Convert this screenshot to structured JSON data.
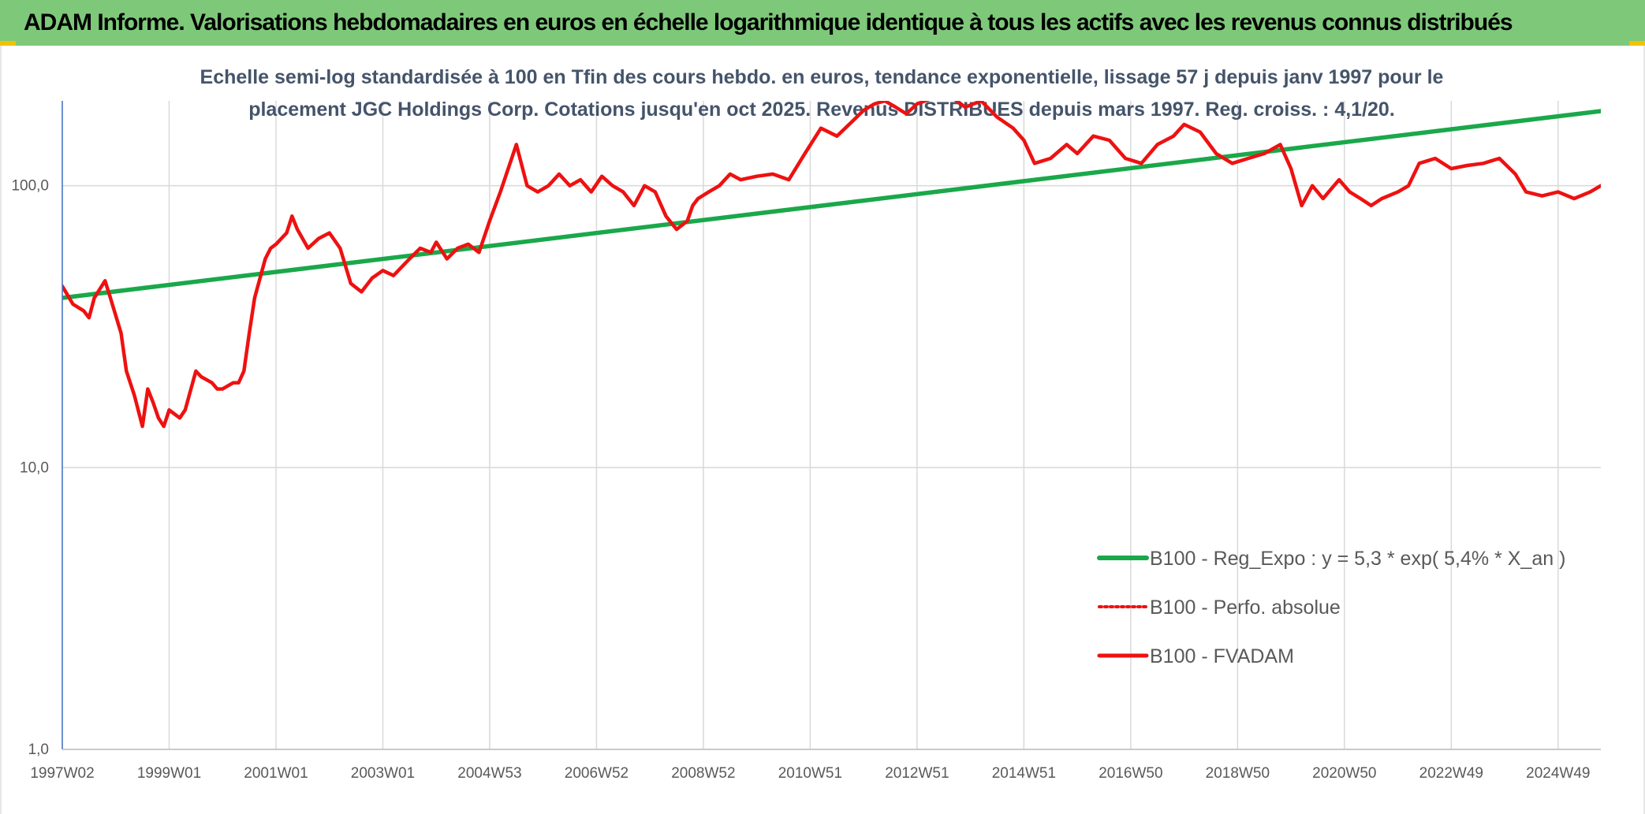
{
  "banner": {
    "title": "ADAM Informe. Valorisations hebdomadaires en euros en échelle logarithmique identique à tous les actifs avec les revenus connus distribués"
  },
  "colors": {
    "banner_bg": "#7ec87a",
    "trend": "#1aa84a",
    "fvadam": "#ee1111",
    "perfo": "#ee1111",
    "grid": "#d9d9d9",
    "text": "#595959",
    "subtitle": "#44546a"
  },
  "chart_data": {
    "type": "line",
    "title_lines": [
      "Echelle semi-log standardisée à 100 en Tfin des cours hebdo. en euros, tendance exponentielle, lissage 57 j depuis janv 1997 pour le",
      "placement JGC Holdings Corp. Cotations jusqu'en oct 2025. Revenus DISTRIBUES depuis mars 1997. Reg. croiss. : 4,1/20."
    ],
    "y_scale": "log",
    "ylim": [
      1,
      200
    ],
    "y_ticks": [
      {
        "value": 1,
        "label": "1,0"
      },
      {
        "value": 10,
        "label": "10,0"
      },
      {
        "value": 100,
        "label": "100,0"
      }
    ],
    "x_range": [
      1997.0,
      2025.8
    ],
    "x_ticks": [
      {
        "value": 1997.0,
        "label": "1997W02"
      },
      {
        "value": 1999.0,
        "label": "1999W01"
      },
      {
        "value": 2001.0,
        "label": "2001W01"
      },
      {
        "value": 2003.0,
        "label": "2003W01"
      },
      {
        "value": 2005.0,
        "label": "2004W53"
      },
      {
        "value": 2007.0,
        "label": "2006W52"
      },
      {
        "value": 2009.0,
        "label": "2008W52"
      },
      {
        "value": 2011.0,
        "label": "2010W51"
      },
      {
        "value": 2013.0,
        "label": "2012W51"
      },
      {
        "value": 2015.0,
        "label": "2014W51"
      },
      {
        "value": 2017.0,
        "label": "2016W50"
      },
      {
        "value": 2019.0,
        "label": "2018W50"
      },
      {
        "value": 2021.0,
        "label": "2020W50"
      },
      {
        "value": 2023.0,
        "label": "2022W49"
      },
      {
        "value": 2025.0,
        "label": "2024W49"
      }
    ],
    "legend_position": "bottom-right",
    "series": [
      {
        "name": "B100 - Reg_Expo : y = 5,3 * exp( 5,4% *  X_an )",
        "style": "solid-green",
        "x": [
          1997.0,
          2025.8
        ],
        "y": [
          40,
          184
        ]
      },
      {
        "name": "B100 - Perfo. absolue",
        "style": "dotted-red",
        "x": [],
        "y": []
      },
      {
        "name": "B100 - FVADAM",
        "style": "solid-red",
        "x": [
          1997.0,
          1997.2,
          1997.4,
          1997.5,
          1997.6,
          1997.8,
          1997.9,
          1998.1,
          1998.2,
          1998.35,
          1998.5,
          1998.6,
          1998.7,
          1998.8,
          1998.9,
          1999.0,
          1999.2,
          1999.3,
          1999.5,
          1999.6,
          1999.8,
          1999.9,
          2000.0,
          2000.2,
          2000.3,
          2000.4,
          2000.5,
          2000.6,
          2000.8,
          2000.9,
          2001.0,
          2001.2,
          2001.3,
          2001.4,
          2001.6,
          2001.8,
          2002.0,
          2002.2,
          2002.4,
          2002.6,
          2002.8,
          2003.0,
          2003.2,
          2003.5,
          2003.7,
          2003.9,
          2004.0,
          2004.2,
          2004.4,
          2004.6,
          2004.8,
          2005.0,
          2005.2,
          2005.5,
          2005.7,
          2005.9,
          2006.1,
          2006.3,
          2006.5,
          2006.7,
          2006.9,
          2007.1,
          2007.3,
          2007.5,
          2007.7,
          2007.9,
          2008.1,
          2008.3,
          2008.5,
          2008.7,
          2008.8,
          2008.9,
          2009.1,
          2009.3,
          2009.5,
          2009.7,
          2010.0,
          2010.3,
          2010.6,
          2010.9,
          2011.2,
          2011.5,
          2011.8,
          2012.0,
          2012.2,
          2012.4,
          2012.6,
          2012.8,
          2013.0,
          2013.3,
          2013.6,
          2013.9,
          2014.2,
          2014.5,
          2014.8,
          2015.0,
          2015.2,
          2015.5,
          2015.8,
          2016.0,
          2016.3,
          2016.6,
          2016.9,
          2017.2,
          2017.5,
          2017.8,
          2018.0,
          2018.3,
          2018.6,
          2018.9,
          2019.2,
          2019.5,
          2019.8,
          2020.0,
          2020.2,
          2020.4,
          2020.6,
          2020.9,
          2021.1,
          2021.3,
          2021.5,
          2021.7,
          2022.0,
          2022.2,
          2022.4,
          2022.7,
          2023.0,
          2023.3,
          2023.6,
          2023.9,
          2024.2,
          2024.4,
          2024.7,
          2025.0,
          2025.3,
          2025.6,
          2025.8
        ],
        "y": [
          44,
          38,
          36,
          34,
          40,
          46,
          40,
          30,
          22,
          18,
          14,
          19,
          17,
          15,
          14,
          16,
          15,
          16,
          22,
          21,
          20,
          19,
          19,
          20,
          20,
          22,
          30,
          40,
          55,
          60,
          62,
          68,
          78,
          70,
          60,
          65,
          68,
          60,
          45,
          42,
          47,
          50,
          48,
          55,
          60,
          58,
          63,
          55,
          60,
          62,
          58,
          75,
          95,
          140,
          100,
          95,
          100,
          110,
          100,
          105,
          95,
          108,
          100,
          95,
          85,
          100,
          95,
          78,
          70,
          75,
          85,
          90,
          95,
          100,
          110,
          105,
          108,
          110,
          105,
          130,
          160,
          150,
          170,
          185,
          195,
          200,
          190,
          180,
          195,
          205,
          210,
          190,
          200,
          175,
          160,
          145,
          120,
          125,
          140,
          130,
          150,
          145,
          125,
          120,
          140,
          150,
          165,
          155,
          130,
          120,
          125,
          130,
          140,
          115,
          85,
          100,
          90,
          105,
          95,
          90,
          85,
          90,
          95,
          100,
          120,
          125,
          115,
          118,
          120,
          125,
          110,
          95,
          92,
          95,
          90,
          95,
          100
        ]
      }
    ]
  }
}
